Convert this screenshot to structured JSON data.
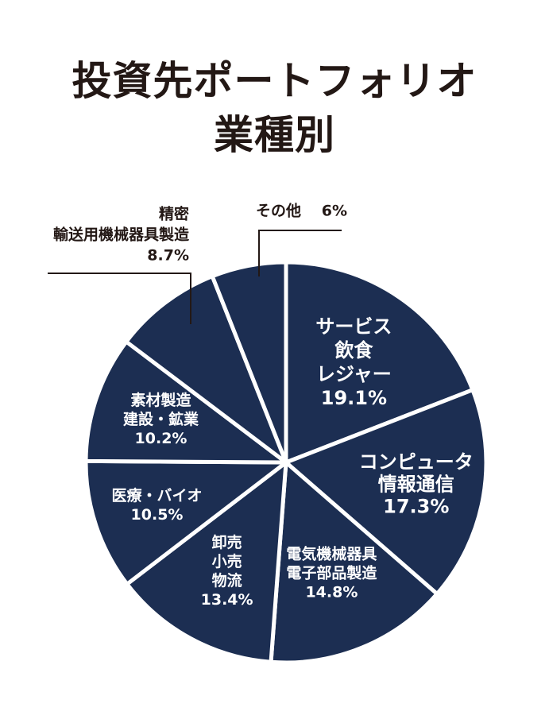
{
  "page": {
    "title_line1": "投資先ポートフォリオ",
    "title_line2": "業種別"
  },
  "colors": {
    "slice_fill": "#1c2e52",
    "slice_stroke": "#ffffff",
    "label_inside": "#ffffff",
    "label_outside": "#231815",
    "leader": "#231815",
    "title": "#231815"
  },
  "chart_data": {
    "type": "pie",
    "title": "投資先ポートフォリオ 業種別",
    "start": "12 o'clock",
    "direction": "clockwise",
    "unit": "%",
    "slices": [
      {
        "label_lines": [
          "サービス",
          "飲食",
          "レジャー"
        ],
        "value": 19.1,
        "value_text": "19.1%",
        "label_position": "inside"
      },
      {
        "label_lines": [
          "コンピュータ",
          "情報通信"
        ],
        "value": 17.3,
        "value_text": "17.3%",
        "label_position": "inside"
      },
      {
        "label_lines": [
          "電気機械器具",
          "電子部品製造"
        ],
        "value": 14.8,
        "value_text": "14.8%",
        "label_position": "inside"
      },
      {
        "label_lines": [
          "卸売",
          "小売",
          "物流"
        ],
        "value": 13.4,
        "value_text": "13.4%",
        "label_position": "inside"
      },
      {
        "label_lines": [
          "医療・バイオ"
        ],
        "value": 10.5,
        "value_text": "10.5%",
        "label_position": "inside"
      },
      {
        "label_lines": [
          "素材製造",
          "建設・鉱業"
        ],
        "value": 10.2,
        "value_text": "10.2%",
        "label_position": "inside"
      },
      {
        "label_lines": [
          "精密",
          "輸送用機械器具製造"
        ],
        "value": 8.7,
        "value_text": "8.7%",
        "label_position": "outside"
      },
      {
        "label_lines": [
          "その他"
        ],
        "value": 6,
        "value_text": "6%",
        "label_position": "outside"
      }
    ]
  }
}
